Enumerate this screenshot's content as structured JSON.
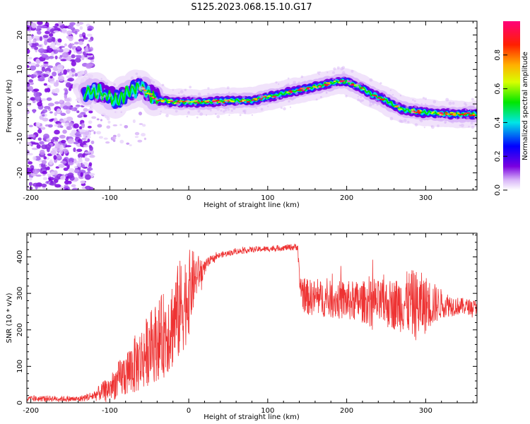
{
  "title": "S125.2023.068.15.10.G17",
  "chart_data": [
    {
      "type": "heatmap",
      "xlabel": "Height of straight line (km)",
      "ylabel": "Frequency (Hz)",
      "xlim": [
        -205,
        365
      ],
      "ylim": [
        -25,
        24
      ],
      "xticks": [
        -200,
        -100,
        0,
        100,
        200,
        300
      ],
      "yticks": [
        -20,
        -10,
        0,
        10,
        20
      ],
      "xtick_labels": [
        "-200",
        "-100",
        "0",
        "100",
        "200",
        "300"
      ],
      "ytick_labels": [
        "-20",
        "-10",
        "0",
        "10",
        "20"
      ],
      "colorbar": {
        "label": "Normalized spectral amplitude",
        "range": [
          0,
          1
        ],
        "ticks": [
          0,
          0.2,
          0.4,
          0.6,
          0.8
        ],
        "tick_labels": [
          "0.0",
          "0.2",
          "0.4",
          "0.6",
          "0.8"
        ],
        "colormap": "rainbow (white → violet → blue → cyan → green → yellow → orange → red → magenta)"
      },
      "ridge": {
        "x": [
          -130,
          -120,
          -110,
          -100,
          -90,
          -80,
          -70,
          -60,
          -50,
          -40,
          -30,
          -20,
          -10,
          0,
          20,
          40,
          60,
          80,
          90,
          100,
          110,
          120,
          130,
          140,
          150,
          160,
          170,
          180,
          190,
          200,
          210,
          220,
          230,
          240,
          250,
          260,
          270,
          280,
          300,
          320,
          340,
          365
        ],
        "y": [
          3,
          4,
          3,
          2,
          1,
          3,
          4,
          5,
          3,
          1,
          1,
          0.5,
          0.5,
          0.5,
          0.5,
          0.8,
          1,
          1,
          1.5,
          2,
          2.5,
          3,
          3.5,
          4,
          4.5,
          5,
          5.5,
          6,
          6.5,
          6.5,
          5.5,
          4.5,
          3,
          2,
          1,
          -0.5,
          -1.5,
          -2,
          -2.5,
          -2.8,
          -3,
          -3
        ]
      },
      "noise_region": {
        "x_range": [
          -205,
          -130
        ],
        "y_range": [
          -25,
          24
        ]
      }
    },
    {
      "type": "line",
      "xlabel": "Height of straight line (km)",
      "ylabel": "SNR (10 * v/v)",
      "xlim": [
        -205,
        365
      ],
      "ylim": [
        0,
        465
      ],
      "xticks": [
        -200,
        -100,
        0,
        100,
        200,
        300
      ],
      "yticks": [
        0,
        100,
        200,
        300,
        400
      ],
      "xtick_labels": [
        "-200",
        "-100",
        "0",
        "100",
        "200",
        "300"
      ],
      "ytick_labels": [
        "0",
        "100",
        "200",
        "300",
        "400"
      ],
      "line_color": "#ee3333",
      "series": [
        {
          "x": [
            -205,
            -180,
            -160,
            -140,
            -130,
            -120,
            -110,
            -100,
            -90,
            -80,
            -70,
            -60,
            -50,
            -40,
            -30,
            -20,
            -10,
            0,
            5,
            10,
            15,
            20,
            25,
            30,
            40,
            50,
            60,
            80,
            100,
            120,
            138,
            140,
            145,
            150,
            170,
            200,
            230,
            260,
            280,
            290,
            300,
            320,
            340,
            365
          ],
          "y": [
            10,
            12,
            11,
            10,
            15,
            20,
            30,
            40,
            60,
            80,
            100,
            120,
            150,
            170,
            190,
            220,
            260,
            300,
            330,
            350,
            360,
            370,
            385,
            395,
            405,
            410,
            415,
            420,
            422,
            425,
            428,
            330,
            300,
            290,
            285,
            280,
            275,
            270,
            275,
            265,
            270,
            272,
            265,
            262
          ],
          "noise_amplitude": [
            8,
            8,
            8,
            8,
            10,
            15,
            25,
            35,
            50,
            65,
            80,
            90,
            100,
            110,
            120,
            130,
            140,
            120,
            90,
            60,
            40,
            20,
            15,
            10,
            8,
            8,
            8,
            8,
            8,
            8,
            10,
            40,
            50,
            50,
            50,
            55,
            60,
            70,
            90,
            100,
            80,
            40,
            25,
            20
          ]
        }
      ]
    }
  ]
}
